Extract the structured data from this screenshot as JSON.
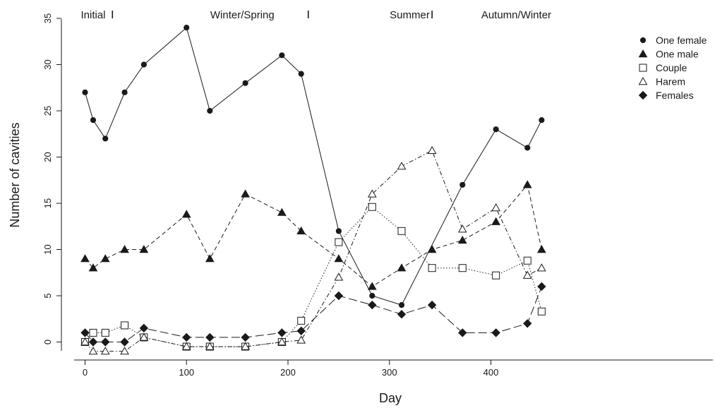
{
  "chart_data": {
    "type": "line",
    "xlabel": "Day",
    "ylabel": "Number of cavities",
    "xlim": [
      -12,
      470
    ],
    "ylim": [
      -1.5,
      35
    ],
    "xticks": [
      0,
      100,
      200,
      300,
      400
    ],
    "yticks": [
      0,
      5,
      10,
      15,
      20,
      25,
      30,
      35
    ],
    "grid": false,
    "legend_position": "top-right",
    "season_labels": [
      {
        "text": "Initial",
        "x": 8
      },
      {
        "text": "Winter/Spring",
        "x": 155
      },
      {
        "text": "Summer",
        "x": 320
      },
      {
        "text": "Autumn/Winter",
        "x": 425
      }
    ],
    "season_dividers": [
      27,
      220,
      342
    ],
    "series": [
      {
        "name": "One female",
        "marker": "circle",
        "dash": "solid",
        "points": [
          [
            0,
            27
          ],
          [
            8,
            24
          ],
          [
            20,
            22
          ],
          [
            39,
            27
          ],
          [
            58,
            30
          ],
          [
            100,
            34
          ],
          [
            123,
            25
          ],
          [
            158,
            28
          ],
          [
            194,
            31
          ],
          [
            213,
            29
          ],
          [
            250,
            12
          ],
          [
            283,
            5
          ],
          [
            312,
            4
          ],
          [
            372,
            17
          ],
          [
            405,
            23
          ],
          [
            436,
            21
          ],
          [
            450,
            24
          ]
        ]
      },
      {
        "name": "One male",
        "marker": "triangle-filled",
        "dash": "dashed",
        "points": [
          [
            0,
            9
          ],
          [
            8,
            8
          ],
          [
            20,
            9
          ],
          [
            39,
            10
          ],
          [
            58,
            10
          ],
          [
            100,
            13.8
          ],
          [
            123,
            9
          ],
          [
            158,
            16
          ],
          [
            194,
            14
          ],
          [
            213,
            12
          ],
          [
            250,
            9
          ],
          [
            283,
            6
          ],
          [
            312,
            8
          ],
          [
            342,
            10
          ],
          [
            372,
            11
          ],
          [
            405,
            13
          ],
          [
            436,
            17
          ],
          [
            450,
            10
          ]
        ]
      },
      {
        "name": "Couple",
        "marker": "square-open",
        "dash": "dotted",
        "points": [
          [
            0,
            0
          ],
          [
            8,
            1
          ],
          [
            20,
            1
          ],
          [
            39,
            1.8
          ],
          [
            58,
            0.5
          ],
          [
            100,
            -0.5
          ],
          [
            123,
            -0.5
          ],
          [
            158,
            -0.5
          ],
          [
            194,
            0
          ],
          [
            213,
            2.3
          ],
          [
            250,
            10.8
          ],
          [
            283,
            14.6
          ],
          [
            312,
            12
          ],
          [
            342,
            8
          ],
          [
            372,
            8
          ],
          [
            405,
            7.2
          ],
          [
            436,
            8.8
          ],
          [
            450,
            3.3
          ]
        ]
      },
      {
        "name": "Harem",
        "marker": "triangle-open",
        "dash": "dashdot",
        "points": [
          [
            0,
            0
          ],
          [
            8,
            -1
          ],
          [
            20,
            -1
          ],
          [
            39,
            -1
          ],
          [
            58,
            0.5
          ],
          [
            100,
            -0.5
          ],
          [
            123,
            -0.5
          ],
          [
            158,
            -0.5
          ],
          [
            194,
            0
          ],
          [
            213,
            0.2
          ],
          [
            250,
            7
          ],
          [
            283,
            16
          ],
          [
            312,
            19
          ],
          [
            342,
            20.7
          ],
          [
            372,
            12.2
          ],
          [
            405,
            14.5
          ],
          [
            436,
            7.2
          ],
          [
            450,
            8
          ]
        ]
      },
      {
        "name": "Females",
        "marker": "diamond",
        "dash": "longdash",
        "points": [
          [
            0,
            1
          ],
          [
            8,
            0
          ],
          [
            20,
            0
          ],
          [
            39,
            0
          ],
          [
            58,
            1.5
          ],
          [
            100,
            0.5
          ],
          [
            123,
            0.5
          ],
          [
            158,
            0.5
          ],
          [
            194,
            1
          ],
          [
            213,
            1.2
          ],
          [
            250,
            5
          ],
          [
            283,
            4
          ],
          [
            312,
            3
          ],
          [
            342,
            4
          ],
          [
            372,
            1
          ],
          [
            405,
            1
          ],
          [
            436,
            2
          ],
          [
            450,
            6
          ]
        ]
      }
    ]
  }
}
